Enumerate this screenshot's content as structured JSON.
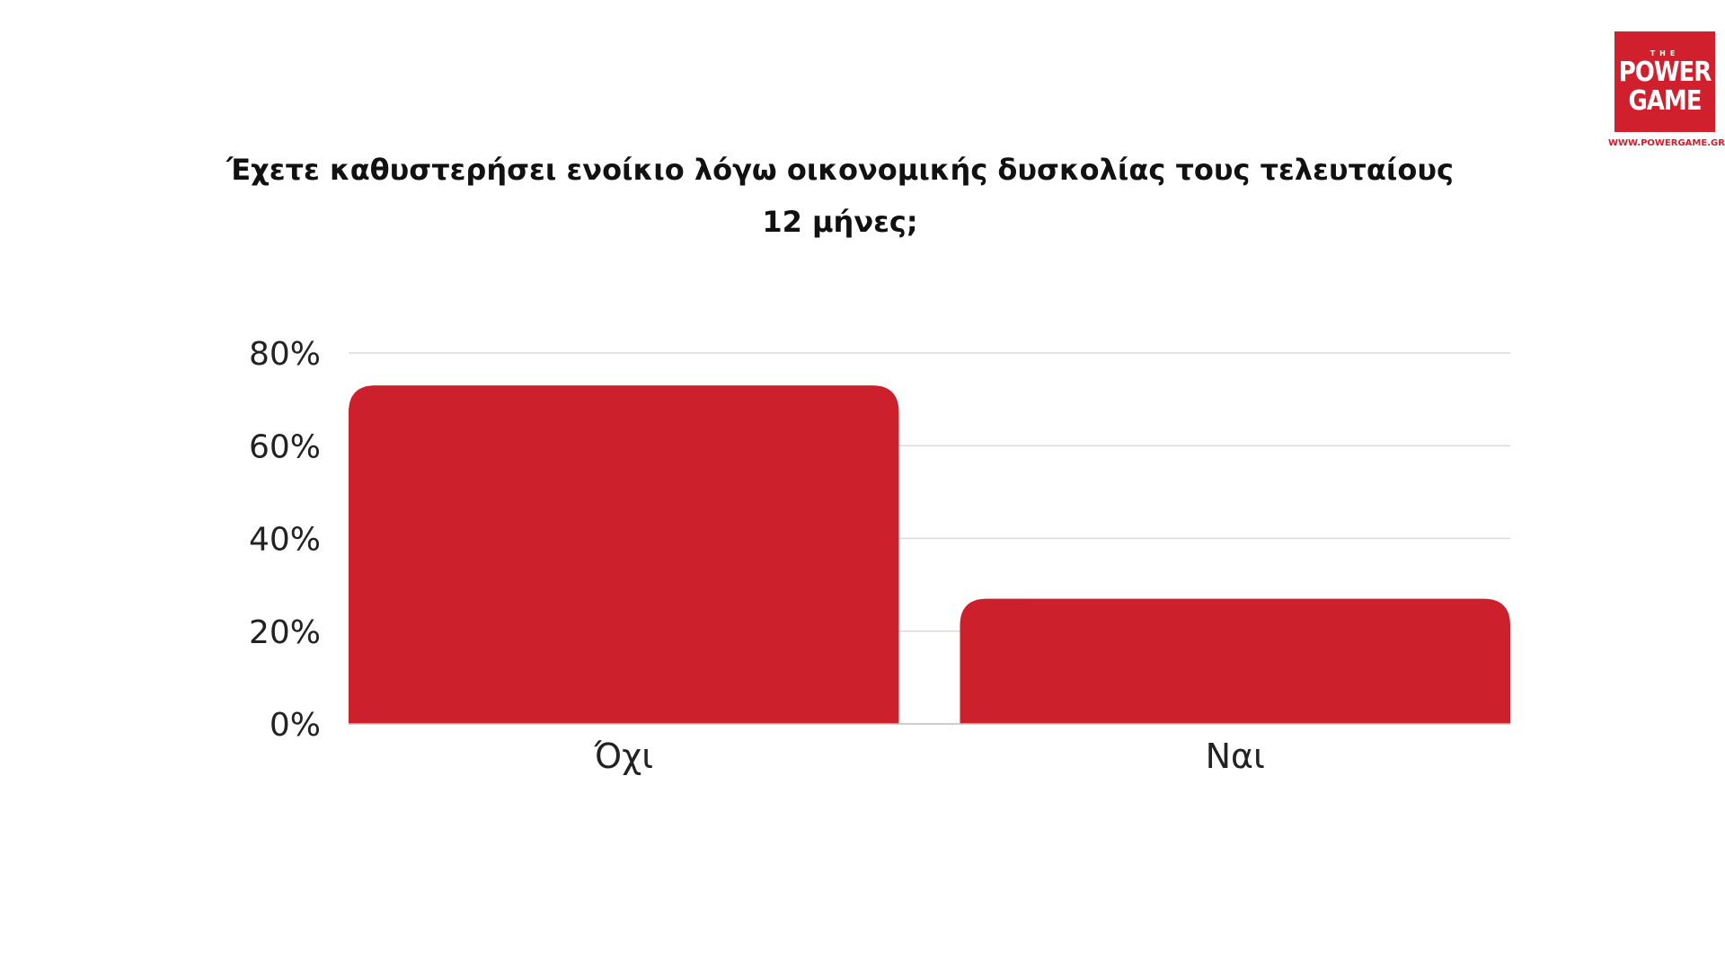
{
  "brand": {
    "logo_text": "THE POWER GAME",
    "logo_the": "THE",
    "logo_power": "POWER",
    "logo_game": "GAME",
    "url": "WWW.POWERGAME.GR",
    "color": "#d0202e"
  },
  "chart_data": {
    "type": "bar",
    "title_line1": "Έχετε καθυστερήσει ενοίκιο λόγω οικονομικής δυσκολίας τους τελευταίους",
    "title_line2": "12 μήνες;",
    "categories": [
      "Όχι",
      "Ναι"
    ],
    "values": [
      73,
      27
    ],
    "ylim": [
      0,
      80
    ],
    "yticks": [
      0,
      20,
      40,
      60,
      80
    ],
    "ytick_labels": [
      "0%",
      "20%",
      "40%",
      "60%",
      "80%"
    ],
    "grid": true,
    "bar_color": "#cc212d",
    "grid_color": "#d9d9d9"
  }
}
